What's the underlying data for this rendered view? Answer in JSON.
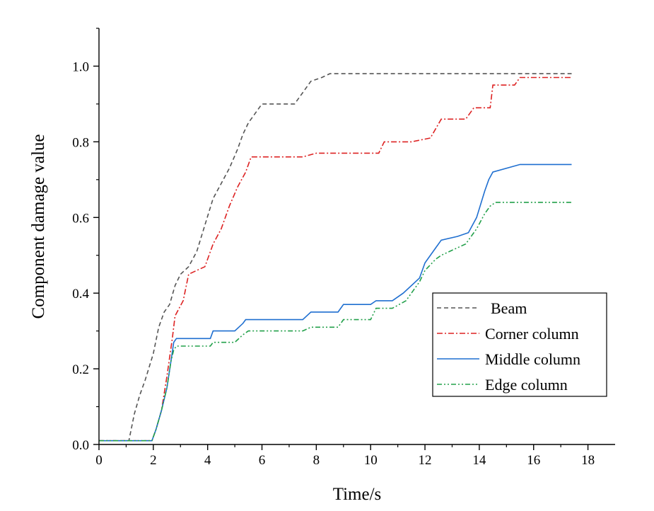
{
  "chart_data": {
    "type": "line",
    "title": "",
    "xlabel": "Time/s",
    "ylabel": "Component damage value",
    "xlim": [
      0,
      19
    ],
    "ylim": [
      0,
      1.1
    ],
    "x_ticks": [
      "0",
      "2",
      "4",
      "6",
      "8",
      "10",
      "12",
      "14",
      "16",
      "18"
    ],
    "y_ticks": [
      "0.0",
      "0.2",
      "0.4",
      "0.6",
      "0.8",
      "1.0"
    ],
    "grid": false,
    "legend_position": "bottom-right",
    "series": [
      {
        "name": "Beam",
        "color": "#555555",
        "dash": "dashed",
        "x": [
          0,
          1.1,
          1.3,
          1.5,
          1.7,
          2.0,
          2.2,
          2.4,
          2.6,
          2.8,
          3.0,
          3.3,
          3.6,
          3.9,
          4.2,
          4.5,
          4.8,
          5.1,
          5.3,
          5.5,
          5.8,
          6.0,
          6.5,
          7.2,
          7.5,
          7.8,
          8.2,
          8.5,
          10,
          12,
          15,
          17.4
        ],
        "y": [
          0.01,
          0.01,
          0.08,
          0.13,
          0.17,
          0.24,
          0.31,
          0.35,
          0.37,
          0.42,
          0.45,
          0.47,
          0.51,
          0.58,
          0.65,
          0.69,
          0.73,
          0.78,
          0.82,
          0.85,
          0.88,
          0.9,
          0.9,
          0.9,
          0.93,
          0.96,
          0.97,
          0.98,
          0.98,
          0.98,
          0.98,
          0.98
        ]
      },
      {
        "name": "Corner column",
        "color": "#dd2222",
        "dash": "dashdot",
        "x": [
          0,
          1.95,
          2.1,
          2.3,
          2.5,
          2.7,
          2.8,
          3.1,
          3.3,
          3.6,
          3.9,
          4.2,
          4.5,
          4.8,
          5.1,
          5.4,
          5.6,
          6.5,
          7.5,
          8.0,
          10.3,
          10.5,
          11.5,
          12.2,
          12.6,
          13.5,
          13.8,
          14.4,
          14.5,
          15.3,
          15.5,
          16.5,
          17.4
        ],
        "y": [
          0.01,
          0.01,
          0.04,
          0.09,
          0.18,
          0.28,
          0.34,
          0.38,
          0.45,
          0.46,
          0.47,
          0.53,
          0.57,
          0.63,
          0.68,
          0.72,
          0.76,
          0.76,
          0.76,
          0.77,
          0.77,
          0.8,
          0.8,
          0.81,
          0.86,
          0.86,
          0.89,
          0.89,
          0.95,
          0.95,
          0.97,
          0.97,
          0.97
        ]
      },
      {
        "name": "Middle column",
        "color": "#1f6fd0",
        "dash": "solid",
        "x": [
          0,
          1.95,
          2.1,
          2.3,
          2.5,
          2.65,
          2.75,
          2.85,
          3.5,
          4.1,
          4.2,
          5.0,
          5.3,
          5.4,
          7.5,
          7.8,
          8.8,
          9.0,
          10.0,
          10.2,
          10.8,
          11.2,
          11.8,
          12.0,
          12.4,
          12.6,
          13.2,
          13.6,
          13.9,
          14.2,
          14.35,
          14.5,
          15.5,
          16.5,
          17.4
        ],
        "y": [
          0.01,
          0.01,
          0.04,
          0.09,
          0.15,
          0.22,
          0.27,
          0.28,
          0.28,
          0.28,
          0.3,
          0.3,
          0.32,
          0.33,
          0.33,
          0.35,
          0.35,
          0.37,
          0.37,
          0.38,
          0.38,
          0.4,
          0.44,
          0.48,
          0.52,
          0.54,
          0.55,
          0.56,
          0.6,
          0.67,
          0.7,
          0.72,
          0.74,
          0.74,
          0.74
        ]
      },
      {
        "name": "Edge column",
        "color": "#22a04a",
        "dash": "dashdotdot",
        "x": [
          0,
          1.95,
          2.1,
          2.3,
          2.5,
          2.65,
          2.75,
          2.85,
          3.5,
          4.1,
          4.2,
          5.0,
          5.3,
          5.5,
          7.5,
          7.8,
          8.8,
          9.0,
          10.0,
          10.2,
          10.8,
          11.3,
          11.8,
          12.0,
          12.4,
          12.6,
          13.2,
          13.5,
          13.9,
          14.2,
          14.4,
          14.6,
          16,
          17.4
        ],
        "y": [
          0.01,
          0.01,
          0.04,
          0.09,
          0.15,
          0.22,
          0.25,
          0.26,
          0.26,
          0.26,
          0.27,
          0.27,
          0.29,
          0.3,
          0.3,
          0.31,
          0.31,
          0.33,
          0.33,
          0.36,
          0.36,
          0.38,
          0.43,
          0.46,
          0.49,
          0.5,
          0.52,
          0.53,
          0.57,
          0.61,
          0.63,
          0.64,
          0.64,
          0.64
        ]
      }
    ]
  }
}
